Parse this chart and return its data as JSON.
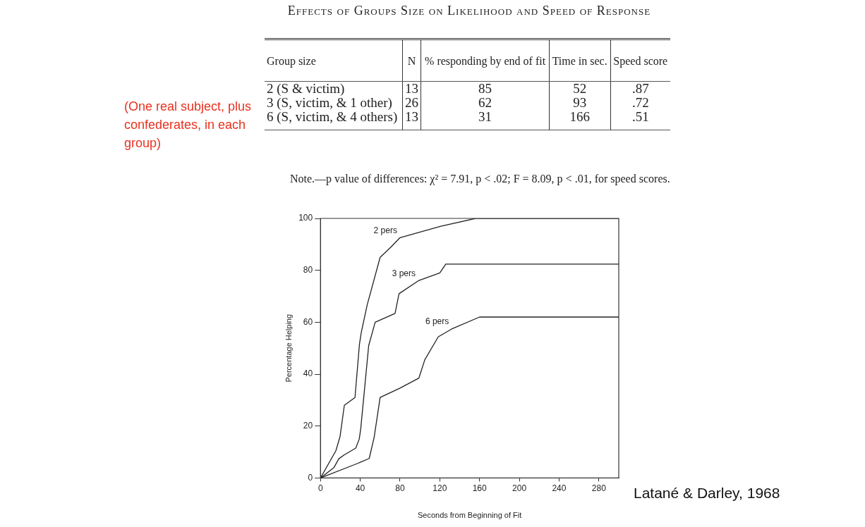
{
  "chart_data": [
    {
      "type": "other",
      "title": "Effects of Groups Size on Likelihood and Speed of Response",
      "annotations": [
        "Group size",
        "N",
        "% responding by end of fit",
        "Time in sec.",
        "Speed score",
        "2 (S & victim)",
        "13",
        "85",
        "52",
        ".87",
        "3 (S, victim, & 1 other)",
        "26",
        "62",
        "93",
        ".72",
        "6 (S, victim, & 4 others)",
        "13",
        "31",
        "166",
        ".51",
        "Note.—p value of differences: χ² = 7.91, p < .02; F = 8.09, p < .01, for speed scores.",
        "(One real subject, plus confederates, in each group)"
      ]
    },
    {
      "type": "line",
      "xlabel": "Seconds from Beginning of Fit",
      "ylabel": "Percentage Helping",
      "xlim": [
        0,
        300
      ],
      "ylim": [
        0,
        100
      ],
      "xticks": [
        0,
        40,
        80,
        120,
        160,
        200,
        240,
        280
      ],
      "yticks": [
        0,
        20,
        40,
        60,
        80,
        100
      ],
      "grid": false,
      "legend": false,
      "marker": "none",
      "line_style": "solid",
      "annotations": [
        "Latané & Darley, 1968"
      ],
      "series": [
        {
          "name": "2 pers",
          "color": "#222222",
          "x": [
            0,
            15.5,
            19.7,
            24,
            34.7,
            39.2,
            41,
            47,
            60,
            71,
            80,
            121,
            156,
            300
          ],
          "values": [
            0,
            10.5,
            16,
            28,
            31,
            51.5,
            56,
            66.7,
            85,
            89,
            92.6,
            97,
            100,
            100
          ]
        },
        {
          "name": "3 pers",
          "color": "#222222",
          "x": [
            0,
            13.5,
            18.5,
            23.5,
            35.5,
            39,
            40.5,
            44,
            48.5,
            55,
            75,
            79,
            98.5,
            120,
            126,
            300
          ],
          "values": [
            0,
            4,
            7.4,
            8.8,
            11.5,
            15,
            19,
            33,
            51,
            60,
            63.4,
            71,
            76,
            79,
            82.4,
            82.4
          ]
        },
        {
          "name": "6 pers",
          "color": "#222222",
          "x": [
            0,
            36,
            49,
            54,
            60,
            80,
            99,
            105,
            118.5,
            132,
            160,
            300
          ],
          "values": [
            0,
            5.4,
            7.5,
            15.7,
            31,
            34.6,
            38.5,
            45.6,
            54.4,
            57.4,
            62,
            62
          ]
        }
      ]
    }
  ]
}
